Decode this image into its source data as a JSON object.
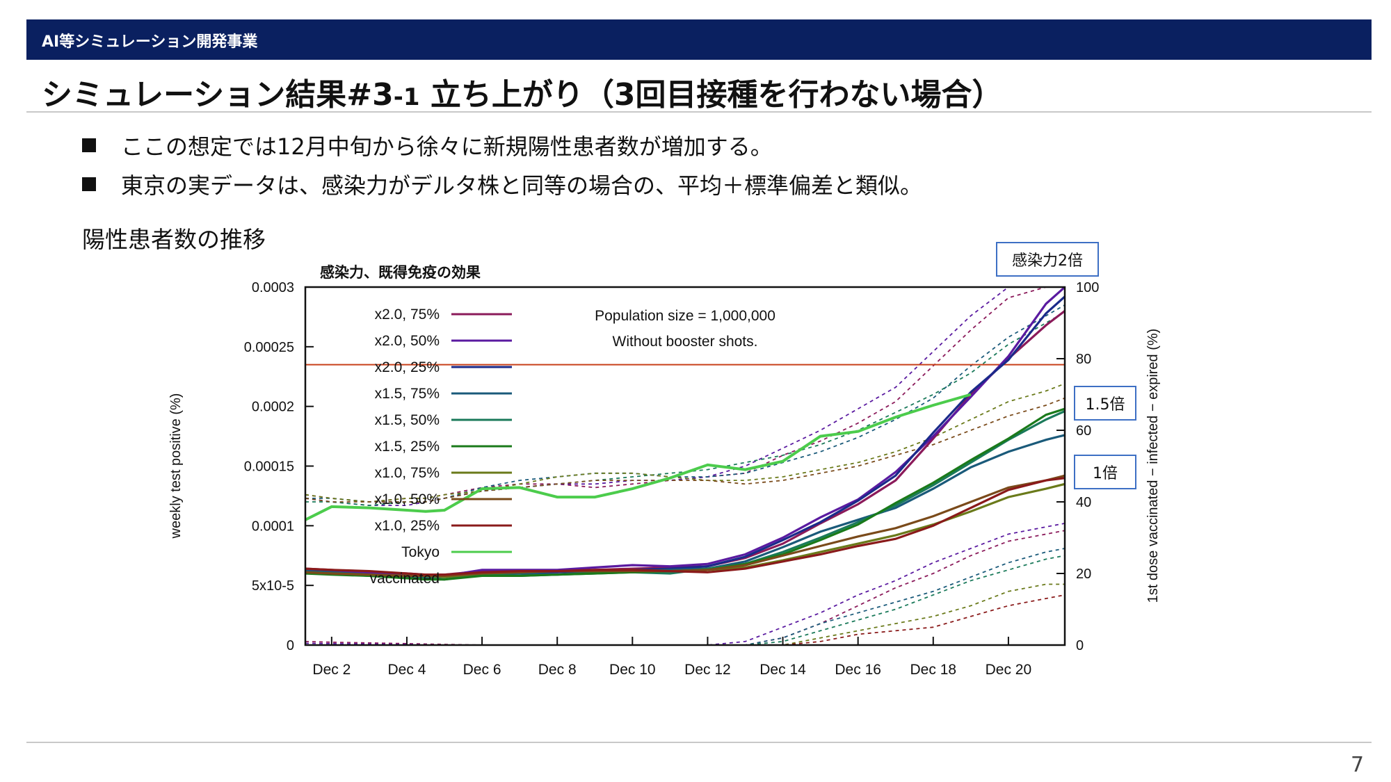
{
  "banner": {
    "text": "AI等シミュレーション開発事業"
  },
  "title": {
    "main": "シミュレーション結果#3",
    "suffix": "-1",
    "rest": " 立ち上がり（3回目接種を行わない場合）"
  },
  "bullets": [
    "ここの想定では12月中旬から徐々に新規陽性患者数が増加する。",
    "東京の実データは、感染力がデルタ株と同等の場合の、平均＋標準偏差と類似。"
  ],
  "subhead": "陽性患者数の推移",
  "callouts": {
    "x2": "感染力2倍",
    "x15": "1.5倍",
    "x1": "1倍"
  },
  "page_number": "7",
  "colors": {
    "banner": "#0a2060",
    "callout_border": "#3d6fc4",
    "threshold": "#c8401a"
  },
  "chart_data": {
    "type": "line",
    "title": "感染力、既得免疫の効果",
    "annotation_lines": [
      "Population size = 1,000,000",
      "Without booster shots."
    ],
    "ylabel": "weekly test positive (%)",
    "y2label": "1st dose vaccinated − infected − expired (%)",
    "ylim": [
      0,
      0.0003
    ],
    "y2lim": [
      0,
      100
    ],
    "yticks": [
      {
        "value": 0.0003,
        "label": "0.0003"
      },
      {
        "value": 0.00025,
        "label": "0.00025"
      },
      {
        "value": 0.0002,
        "label": "0.0002"
      },
      {
        "value": 0.00015,
        "label": "0.00015"
      },
      {
        "value": 0.0001,
        "label": "0.0001"
      },
      {
        "value": 5e-05,
        "label": "5x10-5"
      },
      {
        "value": 0,
        "label": "0"
      }
    ],
    "y2ticks": [
      {
        "value": 100,
        "label": "100"
      },
      {
        "value": 80,
        "label": "80"
      },
      {
        "value": 60,
        "label": "60"
      },
      {
        "value": 40,
        "label": "40"
      },
      {
        "value": 20,
        "label": "20"
      },
      {
        "value": 0,
        "label": "0"
      }
    ],
    "xlim": [
      1.3,
      21.5
    ],
    "xticks": [
      {
        "value": 2,
        "label": "Dec 2"
      },
      {
        "value": 4,
        "label": "Dec 4"
      },
      {
        "value": 6,
        "label": "Dec 6"
      },
      {
        "value": 8,
        "label": "Dec 8"
      },
      {
        "value": 10,
        "label": "Dec 10"
      },
      {
        "value": 12,
        "label": "Dec 12"
      },
      {
        "value": 14,
        "label": "Dec 14"
      },
      {
        "value": 16,
        "label": "Dec 16"
      },
      {
        "value": 18,
        "label": "Dec 18"
      },
      {
        "value": 20,
        "label": "Dec 20"
      }
    ],
    "threshold_y": 0.000235,
    "legend_position": "top-left",
    "x": [
      1.3,
      2,
      3,
      4,
      4.5,
      5,
      6,
      7,
      8,
      9,
      10,
      11,
      12,
      13,
      14,
      15,
      16,
      17,
      18,
      19,
      20,
      21,
      21.5
    ],
    "series": [
      {
        "name": "x2.0, 75%",
        "color": "#8b1a5a",
        "values": [
          6.4e-05,
          6.3e-05,
          6.1e-05,
          6e-05,
          5.9e-05,
          5.9e-05,
          6.2e-05,
          6.2e-05,
          6.2e-05,
          6.3e-05,
          6.4e-05,
          6.5e-05,
          6.6e-05,
          7.3e-05,
          8.5e-05,
          0.000102,
          0.000118,
          0.000138,
          0.000173,
          0.00021,
          0.00024,
          0.000268,
          0.00028
        ]
      },
      {
        "name": "x2.0, 50%",
        "color": "#5a1aa0",
        "values": [
          6.3e-05,
          6.2e-05,
          6e-05,
          5.9e-05,
          5.8e-05,
          5.8e-05,
          6.3e-05,
          6.3e-05,
          6.3e-05,
          6.5e-05,
          6.7e-05,
          6.6e-05,
          6.8e-05,
          7.6e-05,
          9e-05,
          0.000107,
          0.000122,
          0.000145,
          0.000175,
          0.000208,
          0.000242,
          0.000286,
          0.0003
        ]
      },
      {
        "name": "x2.0, 25%",
        "color": "#1a2a8a",
        "values": [
          6.2e-05,
          6.1e-05,
          5.9e-05,
          5.7e-05,
          5.7e-05,
          5.7e-05,
          6e-05,
          6.1e-05,
          6.1e-05,
          6.2e-05,
          6.3e-05,
          6.4e-05,
          6.6e-05,
          7.4e-05,
          8.8e-05,
          0.000103,
          0.000121,
          0.000142,
          0.000178,
          0.000212,
          0.000239,
          0.000278,
          0.000292
        ]
      },
      {
        "name": "x1.5, 75%",
        "color": "#1a5a7a",
        "values": [
          6.2e-05,
          6.1e-05,
          5.9e-05,
          5.8e-05,
          5.8e-05,
          5.8e-05,
          6e-05,
          6e-05,
          5.9e-05,
          6.1e-05,
          6.2e-05,
          6.3e-05,
          6.4e-05,
          7e-05,
          8.2e-05,
          9.5e-05,
          0.000105,
          0.000115,
          0.000131,
          0.000149,
          0.000162,
          0.000172,
          0.000176
        ]
      },
      {
        "name": "x1.5, 50%",
        "color": "#1a7a5a",
        "values": [
          6.1e-05,
          6e-05,
          5.8e-05,
          5.6e-05,
          5.6e-05,
          5.5e-05,
          5.9e-05,
          5.8e-05,
          5.9e-05,
          6e-05,
          6.1e-05,
          6e-05,
          6.4e-05,
          6.8e-05,
          7.8e-05,
          9e-05,
          0.000103,
          0.000117,
          0.000134,
          0.000153,
          0.000172,
          0.000189,
          0.000196
        ]
      },
      {
        "name": "x1.5, 25%",
        "color": "#1a7a1a",
        "values": [
          6e-05,
          5.9e-05,
          5.8e-05,
          5.6e-05,
          5.5e-05,
          5.5e-05,
          5.8e-05,
          5.8e-05,
          5.9e-05,
          6e-05,
          6.1e-05,
          6.2e-05,
          6.3e-05,
          6.8e-05,
          7.6e-05,
          8.8e-05,
          0.000101,
          0.000119,
          0.000136,
          0.000155,
          0.000173,
          0.000193,
          0.000198
        ]
      },
      {
        "name": "x1.0, 75%",
        "color": "#6a7a1a",
        "values": [
          6.1e-05,
          6e-05,
          5.9e-05,
          5.8e-05,
          5.8e-05,
          5.7e-05,
          6e-05,
          6.1e-05,
          6.2e-05,
          6.2e-05,
          6.3e-05,
          6.2e-05,
          6.3e-05,
          6.5e-05,
          7.1e-05,
          7.8e-05,
          8.5e-05,
          9.2e-05,
          0.000101,
          0.000112,
          0.000124,
          0.000131,
          0.000135
        ]
      },
      {
        "name": "x1.0, 50%",
        "color": "#7a4a1a",
        "values": [
          6.1e-05,
          6e-05,
          5.9e-05,
          5.8e-05,
          5.8e-05,
          5.8e-05,
          6e-05,
          6.1e-05,
          6.2e-05,
          6.2e-05,
          6.2e-05,
          6.2e-05,
          6.3e-05,
          6.7e-05,
          7.5e-05,
          8.3e-05,
          9.1e-05,
          9.8e-05,
          0.000108,
          0.00012,
          0.000132,
          0.000138,
          0.000142
        ]
      },
      {
        "name": "x1.0, 25%",
        "color": "#8a1a1a",
        "values": [
          6.4e-05,
          6.3e-05,
          6.2e-05,
          6e-05,
          5.9e-05,
          5.9e-05,
          6.1e-05,
          6.2e-05,
          6.2e-05,
          6.3e-05,
          6.3e-05,
          6.2e-05,
          6.1e-05,
          6.4e-05,
          7e-05,
          7.6e-05,
          8.3e-05,
          8.9e-05,
          0.0001,
          0.000115,
          0.00013,
          0.000138,
          0.00014
        ]
      },
      {
        "name": "Tokyo",
        "color": "#4ccc4c",
        "values": [
          0.000105,
          0.000116,
          0.000115,
          0.000113,
          0.000112,
          0.000113,
          0.000131,
          0.000132,
          0.000124,
          0.000124,
          0.000131,
          0.00014,
          0.000151,
          0.000147,
          0.000154,
          0.000175,
          0.000179,
          0.000191,
          0.000201,
          0.00021,
          null,
          null,
          null
        ]
      }
    ],
    "vaccinated": {
      "name": "vaccinated",
      "axis": "y2",
      "style": "dashed",
      "x": [
        1.3,
        2,
        3,
        4,
        4.5,
        5,
        6,
        7,
        8,
        9,
        10,
        11,
        12,
        13,
        14,
        15,
        16,
        17,
        18,
        19,
        20,
        21,
        21.5
      ],
      "series": [
        {
          "color": "#8b1a5a",
          "values": [
            42,
            41,
            40,
            41,
            41,
            42,
            44,
            45,
            45,
            44,
            45,
            46,
            47,
            48,
            53,
            57,
            62,
            68,
            78,
            88,
            97,
            100,
            100
          ]
        },
        {
          "color": "#5a1aa0",
          "values": [
            41,
            40,
            39,
            39,
            40,
            41,
            43,
            44,
            45,
            45,
            46,
            46,
            47,
            50,
            55,
            60,
            66,
            72,
            82,
            92,
            100,
            100,
            100
          ]
        },
        {
          "color": "#1a5a7a",
          "values": [
            41,
            41,
            40,
            40,
            40,
            41,
            44,
            46,
            47,
            48,
            48,
            47,
            47,
            48,
            51,
            54,
            58,
            63,
            69,
            78,
            86,
            92,
            95
          ]
        },
        {
          "color": "#1a7a5a",
          "values": [
            40,
            40,
            39,
            40,
            40,
            41,
            43,
            44,
            45,
            46,
            47,
            48,
            49,
            51,
            53,
            56,
            60,
            65,
            70,
            76,
            84,
            90,
            93
          ]
        },
        {
          "color": "#6a7a1a",
          "values": [
            42,
            41,
            40,
            41,
            41,
            42,
            43,
            45,
            47,
            48,
            48,
            47,
            46,
            46,
            47,
            49,
            51,
            54,
            58,
            63,
            68,
            71,
            73
          ]
        },
        {
          "color": "#7a4a1a",
          "values": [
            41,
            40,
            40,
            40,
            40,
            41,
            43,
            44,
            45,
            46,
            46,
            46,
            46,
            45,
            46,
            48,
            50,
            53,
            56,
            60,
            64,
            67,
            69
          ]
        },
        {
          "color": "#8b1a5a",
          "values": [
            1,
            0.8,
            0.6,
            0.4,
            0.3,
            0.2,
            0,
            0,
            0,
            0,
            0,
            0,
            0,
            0,
            2,
            6,
            11,
            16,
            20,
            25,
            29,
            31,
            32
          ]
        },
        {
          "color": "#5a1aa0",
          "values": [
            0.5,
            0.4,
            0.3,
            0.2,
            0.1,
            0,
            0,
            0,
            0,
            0,
            0,
            0,
            0,
            1,
            5,
            9,
            14,
            18,
            23,
            27,
            31,
            33,
            34
          ]
        },
        {
          "color": "#1a5a7a",
          "values": [
            0,
            0,
            0,
            0,
            0,
            0,
            0,
            0,
            0,
            0,
            0,
            0,
            0,
            0,
            2,
            6,
            9,
            12,
            15,
            19,
            23,
            26,
            27
          ]
        },
        {
          "color": "#1a7a5a",
          "values": [
            0,
            0,
            0,
            0,
            0,
            0,
            0,
            0,
            0,
            0,
            0,
            0,
            0,
            0,
            1,
            4,
            7,
            10,
            14,
            18,
            21,
            24,
            25
          ]
        },
        {
          "color": "#6a7a1a",
          "values": [
            0,
            0,
            0,
            0,
            0,
            0,
            0,
            0,
            0,
            0,
            0,
            0,
            0,
            0,
            0,
            2,
            4,
            6,
            8,
            11,
            15,
            17,
            17
          ]
        },
        {
          "color": "#8a1a1a",
          "values": [
            0,
            0,
            0,
            0,
            0,
            0,
            0,
            0,
            0,
            0,
            0,
            0,
            0,
            0,
            0,
            1,
            3,
            4,
            5,
            8,
            11,
            13,
            14
          ]
        }
      ]
    }
  }
}
